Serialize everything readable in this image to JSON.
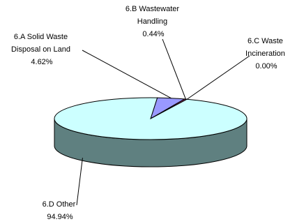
{
  "chart_data": {
    "type": "pie",
    "style": "3d",
    "slices": [
      {
        "name_lines": [
          "6.A Solid Waste",
          "Disposal on Land"
        ],
        "name": "6.A Solid Waste Disposal on Land",
        "value": 4.62,
        "pct_label": "4.62%",
        "color": "#9999ff"
      },
      {
        "name_lines": [
          "6.B Wastewater",
          "Handling"
        ],
        "name": "6.B Wastewater Handling",
        "value": 0.44,
        "pct_label": "0.44%",
        "color": "#993366"
      },
      {
        "name_lines": [
          "6.C Waste",
          "Incineration"
        ],
        "name": "6.C Waste Incineration",
        "value": 0.0,
        "pct_label": "0.00%",
        "color": "#ffffcc"
      },
      {
        "name_lines": [
          "6.D Other"
        ],
        "name": "6.D Other",
        "value": 94.94,
        "pct_label": "94.94%",
        "color": "#ccffff"
      }
    ],
    "side_color": "#5f8080",
    "outline_color": "#000000",
    "legend": "none"
  }
}
